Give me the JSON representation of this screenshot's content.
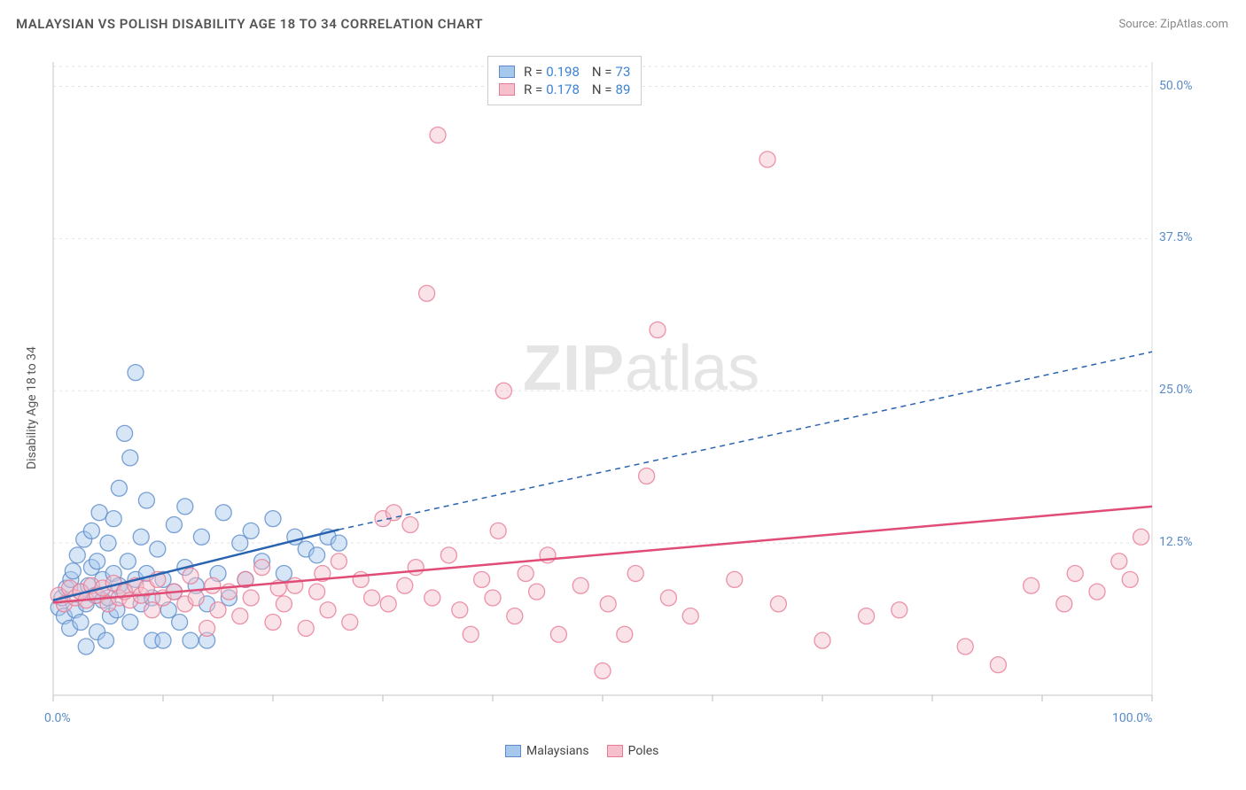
{
  "title": "MALAYSIAN VS POLISH DISABILITY AGE 18 TO 34 CORRELATION CHART",
  "source_label": "Source: ",
  "source_name": "ZipAtlas.com",
  "ylabel": "Disability Age 18 to 34",
  "watermark_1": "ZIP",
  "watermark_2": "atlas",
  "chart": {
    "type": "scatter",
    "background_color": "#ffffff",
    "grid_color": "#e2e2e2",
    "axis_color": "#d8d8d8",
    "tick_color": "#bbbbbb",
    "label_color_blue": "#5b8bc9",
    "xlim": [
      0,
      100
    ],
    "ylim": [
      0,
      52
    ],
    "xtick_positions": [
      0,
      10,
      20,
      30,
      40,
      50,
      60,
      70,
      80,
      90,
      100
    ],
    "xtick_labels": {
      "0": "0.0%",
      "100": "100.0%"
    },
    "ytick_positions": [
      12.5,
      25.0,
      37.5,
      50.0
    ],
    "ytick_labels": [
      "12.5%",
      "25.0%",
      "37.5%",
      "50.0%"
    ],
    "marker_radius": 9,
    "marker_opacity": 0.45,
    "line_width_solid": 2.5,
    "line_width_dash": 1.5,
    "series": [
      {
        "name": "Malaysians",
        "fill": "#a7c8ed",
        "stroke": "#5b8bc9",
        "line_color": "#2a63b0",
        "trend_solid": {
          "x1": 0,
          "y1": 7.8,
          "x2": 26,
          "y2": 13.6
        },
        "trend_dash": {
          "x1": 26,
          "y1": 13.6,
          "x2": 100,
          "y2": 28.2
        },
        "points": [
          [
            0.5,
            7.2
          ],
          [
            0.8,
            8.0
          ],
          [
            1.0,
            6.5
          ],
          [
            1.2,
            8.8
          ],
          [
            1.5,
            5.5
          ],
          [
            1.6,
            9.5
          ],
          [
            1.8,
            10.2
          ],
          [
            2.0,
            7.0
          ],
          [
            2.2,
            11.5
          ],
          [
            2.5,
            6.0
          ],
          [
            2.5,
            8.5
          ],
          [
            2.8,
            12.8
          ],
          [
            3.0,
            7.5
          ],
          [
            3.0,
            4.0
          ],
          [
            3.2,
            9.0
          ],
          [
            3.5,
            10.5
          ],
          [
            3.5,
            13.5
          ],
          [
            3.8,
            8.2
          ],
          [
            4.0,
            5.2
          ],
          [
            4.0,
            11.0
          ],
          [
            4.2,
            15.0
          ],
          [
            4.5,
            7.8
          ],
          [
            4.5,
            9.5
          ],
          [
            4.8,
            4.5
          ],
          [
            5.0,
            8.0
          ],
          [
            5.0,
            12.5
          ],
          [
            5.2,
            6.5
          ],
          [
            5.5,
            14.5
          ],
          [
            5.5,
            10.0
          ],
          [
            5.8,
            7.0
          ],
          [
            6.0,
            17.0
          ],
          [
            6.0,
            9.0
          ],
          [
            6.5,
            21.5
          ],
          [
            6.5,
            8.5
          ],
          [
            6.8,
            11.0
          ],
          [
            7.0,
            19.5
          ],
          [
            7.0,
            6.0
          ],
          [
            7.5,
            26.5
          ],
          [
            7.5,
            9.5
          ],
          [
            8.0,
            13.0
          ],
          [
            8.0,
            7.5
          ],
          [
            8.5,
            16.0
          ],
          [
            8.5,
            10.0
          ],
          [
            9.0,
            4.5
          ],
          [
            9.0,
            8.0
          ],
          [
            9.5,
            12.0
          ],
          [
            10.0,
            4.5
          ],
          [
            10.0,
            9.5
          ],
          [
            10.5,
            7.0
          ],
          [
            11.0,
            14.0
          ],
          [
            11.0,
            8.5
          ],
          [
            11.5,
            6.0
          ],
          [
            12.0,
            15.5
          ],
          [
            12.0,
            10.5
          ],
          [
            12.5,
            4.5
          ],
          [
            13.0,
            9.0
          ],
          [
            13.5,
            13.0
          ],
          [
            14.0,
            7.5
          ],
          [
            14.0,
            4.5
          ],
          [
            15.0,
            10.0
          ],
          [
            15.5,
            15.0
          ],
          [
            16.0,
            8.0
          ],
          [
            17.0,
            12.5
          ],
          [
            17.5,
            9.5
          ],
          [
            18.0,
            13.5
          ],
          [
            19.0,
            11.0
          ],
          [
            20.0,
            14.5
          ],
          [
            21.0,
            10.0
          ],
          [
            22.0,
            13.0
          ],
          [
            23.0,
            12.0
          ],
          [
            24.0,
            11.5
          ],
          [
            25.0,
            13.0
          ],
          [
            26.0,
            12.5
          ]
        ]
      },
      {
        "name": "Poles",
        "fill": "#f5c0cc",
        "stroke": "#e77a95",
        "line_color": "#e04c75",
        "trend_solid": {
          "x1": 0,
          "y1": 7.6,
          "x2": 100,
          "y2": 15.5
        },
        "trend_dash": null,
        "points": [
          [
            0.5,
            8.2
          ],
          [
            1.0,
            7.5
          ],
          [
            1.5,
            8.8
          ],
          [
            2.0,
            8.0
          ],
          [
            2.5,
            8.5
          ],
          [
            3.0,
            7.8
          ],
          [
            3.5,
            9.0
          ],
          [
            4.0,
            8.2
          ],
          [
            4.5,
            8.8
          ],
          [
            5.0,
            7.5
          ],
          [
            5.5,
            9.2
          ],
          [
            6.0,
            8.0
          ],
          [
            6.5,
            8.5
          ],
          [
            7.0,
            7.8
          ],
          [
            7.5,
            9.0
          ],
          [
            8.0,
            8.2
          ],
          [
            8.5,
            8.8
          ],
          [
            9.0,
            7.0
          ],
          [
            9.5,
            9.5
          ],
          [
            10.0,
            8.0
          ],
          [
            11.0,
            8.5
          ],
          [
            12.0,
            7.5
          ],
          [
            12.5,
            9.8
          ],
          [
            13.0,
            8.0
          ],
          [
            14.0,
            5.5
          ],
          [
            14.5,
            9.0
          ],
          [
            15.0,
            7.0
          ],
          [
            16.0,
            8.5
          ],
          [
            17.0,
            6.5
          ],
          [
            17.5,
            9.5
          ],
          [
            18.0,
            8.0
          ],
          [
            19.0,
            10.5
          ],
          [
            20.0,
            6.0
          ],
          [
            20.5,
            8.8
          ],
          [
            21.0,
            7.5
          ],
          [
            22.0,
            9.0
          ],
          [
            23.0,
            5.5
          ],
          [
            24.0,
            8.5
          ],
          [
            24.5,
            10.0
          ],
          [
            25.0,
            7.0
          ],
          [
            26.0,
            11.0
          ],
          [
            27.0,
            6.0
          ],
          [
            28.0,
            9.5
          ],
          [
            29.0,
            8.0
          ],
          [
            30.0,
            14.5
          ],
          [
            30.5,
            7.5
          ],
          [
            31.0,
            15.0
          ],
          [
            32.0,
            9.0
          ],
          [
            32.5,
            14.0
          ],
          [
            33.0,
            10.5
          ],
          [
            34.0,
            33.0
          ],
          [
            34.5,
            8.0
          ],
          [
            35.0,
            46.0
          ],
          [
            36.0,
            11.5
          ],
          [
            37.0,
            7.0
          ],
          [
            38.0,
            5.0
          ],
          [
            39.0,
            9.5
          ],
          [
            40.0,
            8.0
          ],
          [
            40.5,
            13.5
          ],
          [
            41.0,
            25.0
          ],
          [
            42.0,
            6.5
          ],
          [
            43.0,
            10.0
          ],
          [
            44.0,
            8.5
          ],
          [
            45.0,
            11.5
          ],
          [
            46.0,
            5.0
          ],
          [
            48.0,
            9.0
          ],
          [
            50.0,
            2.0
          ],
          [
            50.5,
            7.5
          ],
          [
            52.0,
            5.0
          ],
          [
            53.0,
            10.0
          ],
          [
            54.0,
            18.0
          ],
          [
            55.0,
            30.0
          ],
          [
            56.0,
            8.0
          ],
          [
            58.0,
            6.5
          ],
          [
            62.0,
            9.5
          ],
          [
            65.0,
            44.0
          ],
          [
            66.0,
            7.5
          ],
          [
            70.0,
            4.5
          ],
          [
            74.0,
            6.5
          ],
          [
            77.0,
            7.0
          ],
          [
            83.0,
            4.0
          ],
          [
            86.0,
            2.5
          ],
          [
            89.0,
            9.0
          ],
          [
            92.0,
            7.5
          ],
          [
            93.0,
            10.0
          ],
          [
            95.0,
            8.5
          ],
          [
            97.0,
            11.0
          ],
          [
            98.0,
            9.5
          ],
          [
            99.0,
            13.0
          ]
        ]
      }
    ],
    "stats": [
      {
        "series": 0,
        "R": "0.198",
        "N": "73"
      },
      {
        "series": 1,
        "R": "0.178",
        "N": "89"
      }
    ]
  },
  "legend_labels": [
    "Malaysians",
    "Poles"
  ],
  "stat_labels": {
    "R": "R =",
    "N": "N ="
  }
}
